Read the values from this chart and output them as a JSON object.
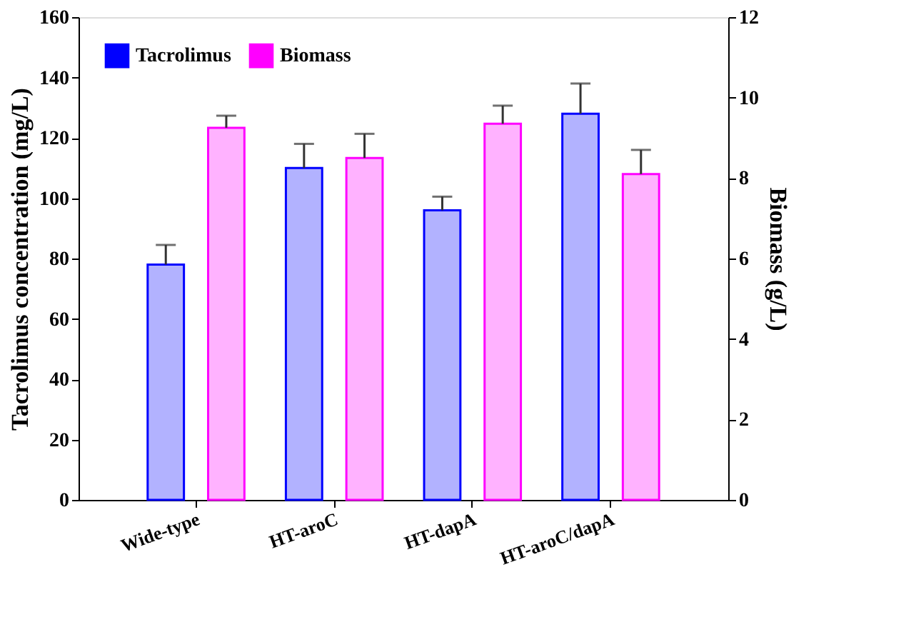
{
  "chart_data": {
    "type": "bar",
    "categories": [
      "Wide-type",
      "HT-aroC",
      "HT-dapA",
      "HT-aroC/dapA"
    ],
    "series": [
      {
        "name": "Tacrolimus",
        "color": "#0000ff",
        "values": [
          78,
          110,
          96,
          128
        ],
        "errors": [
          6.5,
          8,
          4.5,
          10
        ]
      },
      {
        "name": "Biomass",
        "color": "#ff00ff",
        "axis": "y2",
        "values": [
          9.25,
          8.5,
          9.35,
          8.1
        ],
        "errors": [
          0.3,
          0.6,
          0.45,
          0.6
        ]
      }
    ],
    "ylabel": "Tacrolimus concentration  (mg/L)",
    "y2label": "Biomass (g/L)",
    "ylim": [
      0,
      160
    ],
    "yticks": [
      0,
      20,
      40,
      60,
      80,
      100,
      120,
      140,
      160
    ],
    "y2lim": [
      0,
      12
    ],
    "y2ticks": [
      0,
      2,
      4,
      6,
      8,
      10,
      12
    ],
    "legend": "top left",
    "grid": false
  }
}
